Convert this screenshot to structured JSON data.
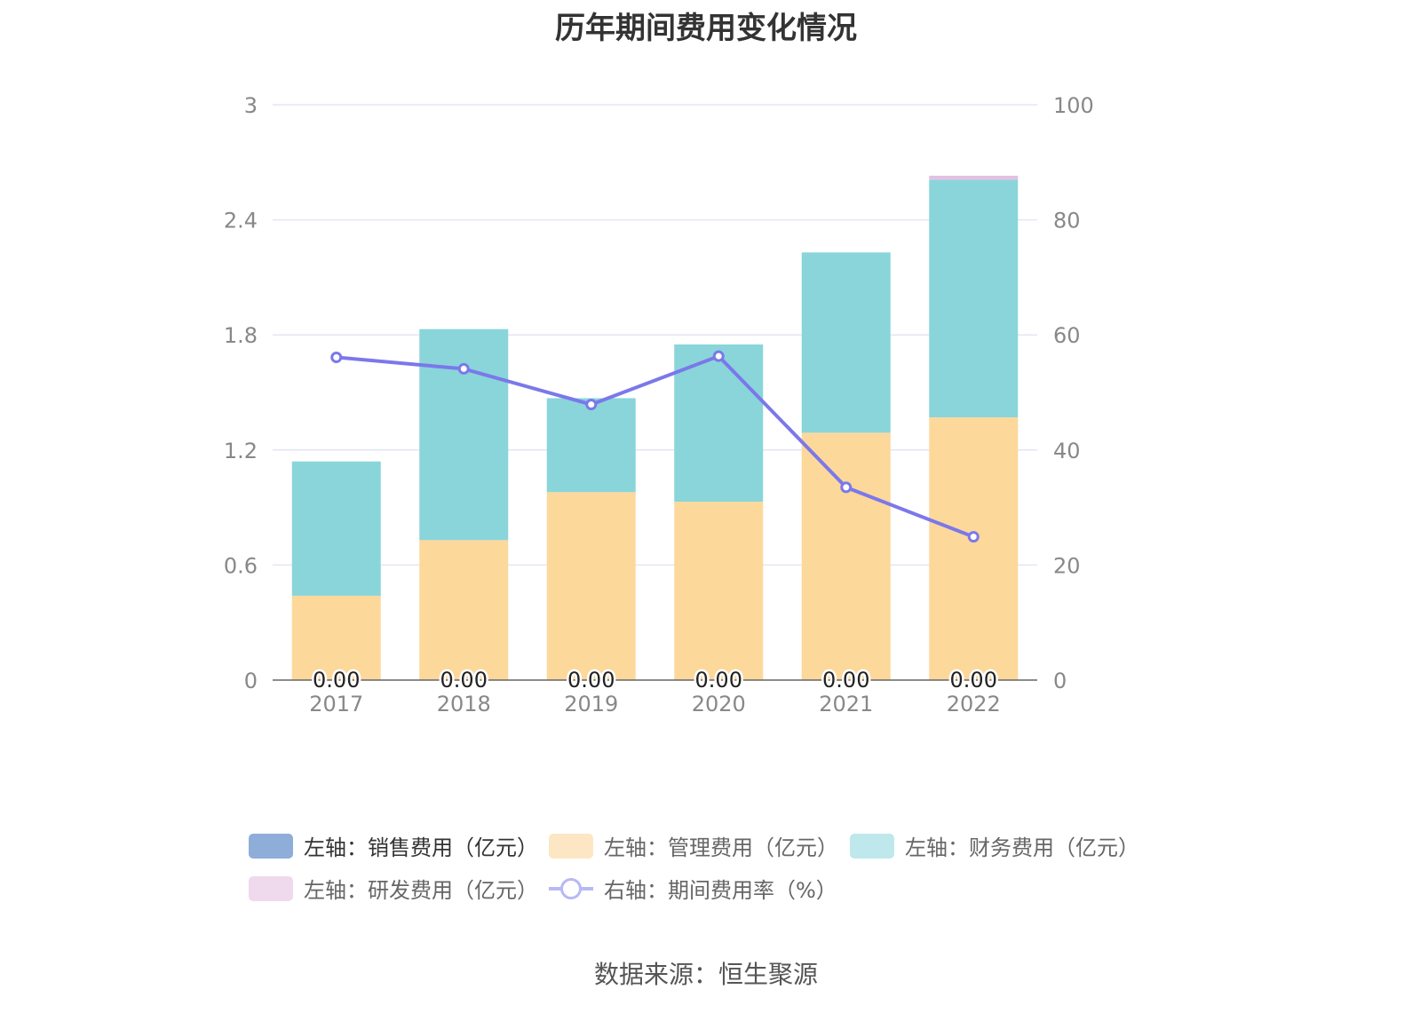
{
  "title": "历年期间费用变化情况",
  "source": "数据来源：恒生聚源",
  "legend": [
    {
      "label": "左轴：销售费用（亿元）",
      "color": "#8fadd9",
      "kind": "box",
      "active": true
    },
    {
      "label": "左轴：管理费用（亿元）",
      "color": "#fde6c3",
      "kind": "box",
      "active": false
    },
    {
      "label": "左轴：财务费用（亿元）",
      "color": "#bfe8ec",
      "kind": "box",
      "active": false
    },
    {
      "label": "左轴：研发费用（亿元）",
      "color": "#efd9ec",
      "kind": "box",
      "active": false
    },
    {
      "label": "右轴：期间费用率（%）",
      "color": "#b7b9f4",
      "kind": "line",
      "active": false
    }
  ],
  "chart_data": {
    "type": "bar",
    "stacked": true,
    "categories": [
      "2017",
      "2018",
      "2019",
      "2020",
      "2021",
      "2022"
    ],
    "left_axis": {
      "ylim": [
        0,
        3
      ],
      "ticks": [
        "0",
        "0.6",
        "1.2",
        "1.8",
        "2.4",
        "3"
      ]
    },
    "right_axis": {
      "ylim": [
        0,
        100
      ],
      "ticks": [
        "0",
        "20",
        "40",
        "60",
        "80",
        "100"
      ]
    },
    "grid": true,
    "legend_position": "bottom",
    "series": [
      {
        "name": "左轴：销售费用（亿元）",
        "axis": "left",
        "color": "#8fadd9",
        "values": [
          0.0,
          0.0,
          0.0,
          0.0,
          0.0,
          0.0
        ],
        "labels": [
          "0.00",
          "0.00",
          "0.00",
          "0.00",
          "0.00",
          "0.00"
        ]
      },
      {
        "name": "左轴：管理费用（亿元）",
        "axis": "left",
        "color": "#fdd89b",
        "values": [
          0.44,
          0.73,
          0.98,
          0.93,
          1.29,
          1.37
        ]
      },
      {
        "name": "左轴：财务费用（亿元）",
        "axis": "left",
        "color": "#89d5da",
        "values": [
          0.7,
          1.1,
          0.49,
          0.82,
          0.94,
          1.24
        ]
      },
      {
        "name": "左轴：研发费用（亿元）",
        "axis": "left",
        "color": "#e6bfe2",
        "values": [
          0,
          0,
          0,
          0,
          0,
          0.02
        ]
      }
    ],
    "line": {
      "name": "右轴：期间费用率（%）",
      "axis": "right",
      "type": "line",
      "color": "#7b78ea",
      "values": [
        56.1,
        54.1,
        47.9,
        56.3,
        33.5,
        24.9
      ]
    }
  }
}
